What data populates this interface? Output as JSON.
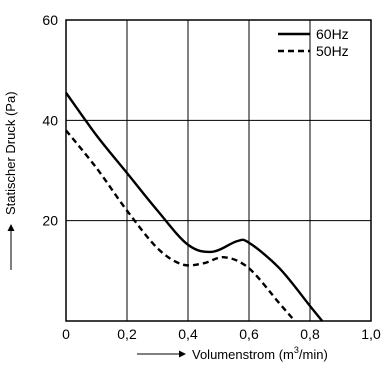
{
  "chart_data": {
    "type": "line",
    "xlabel_base": "Volumenstrom (m",
    "xlabel_sup": "3",
    "xlabel_end": "/min)",
    "ylabel": "Statischer Druck (Pa)",
    "xlim": [
      0,
      1.0
    ],
    "ylim": [
      0,
      60
    ],
    "xticks": [
      {
        "v": 0,
        "label": "0"
      },
      {
        "v": 0.2,
        "label": "0,2"
      },
      {
        "v": 0.4,
        "label": "0,4"
      },
      {
        "v": 0.6,
        "label": "0,6"
      },
      {
        "v": 0.8,
        "label": "0,8"
      },
      {
        "v": 1.0,
        "label": "1,0"
      }
    ],
    "yticks": [
      {
        "v": 20,
        "label": "20"
      },
      {
        "v": 40,
        "label": "40"
      },
      {
        "v": 60,
        "label": "60"
      }
    ],
    "grid": true,
    "legend_position": "top-right",
    "series": [
      {
        "name": "60Hz",
        "style": "solid",
        "color": "#000000",
        "points": [
          [
            0,
            45.5
          ],
          [
            0.1,
            37
          ],
          [
            0.2,
            29.5
          ],
          [
            0.3,
            22
          ],
          [
            0.4,
            15.2
          ],
          [
            0.48,
            13.8
          ],
          [
            0.56,
            15.9
          ],
          [
            0.6,
            15.6
          ],
          [
            0.7,
            10.5
          ],
          [
            0.8,
            3
          ],
          [
            0.84,
            0
          ]
        ]
      },
      {
        "name": "50Hz",
        "style": "dashed",
        "color": "#000000",
        "points": [
          [
            0,
            38
          ],
          [
            0.1,
            30.5
          ],
          [
            0.2,
            22
          ],
          [
            0.3,
            14.5
          ],
          [
            0.38,
            11.3
          ],
          [
            0.45,
            11.5
          ],
          [
            0.52,
            12.7
          ],
          [
            0.6,
            10.5
          ],
          [
            0.7,
            3.5
          ],
          [
            0.75,
            0
          ]
        ]
      }
    ]
  }
}
